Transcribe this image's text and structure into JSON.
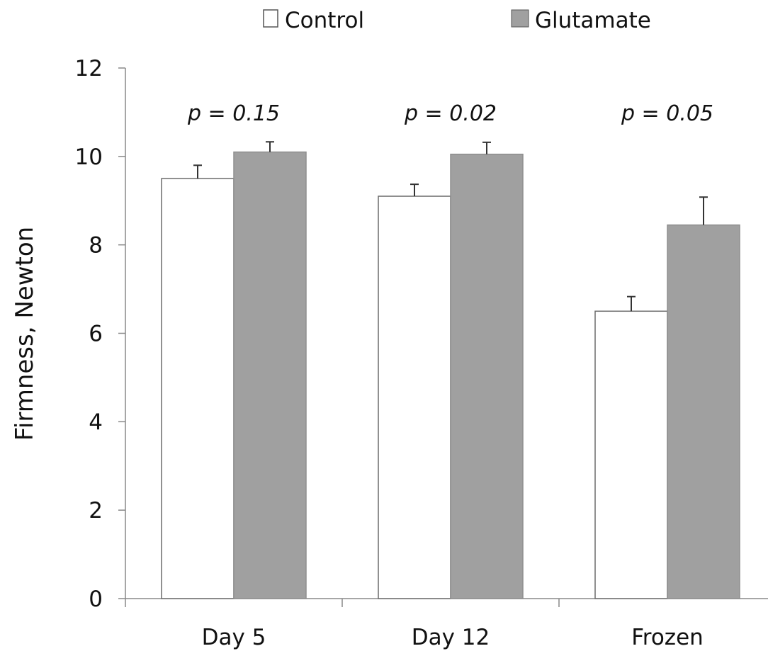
{
  "chart_data": {
    "type": "bar",
    "categories": [
      "Day 5",
      "Day 12",
      "Frozen"
    ],
    "series": [
      {
        "name": "Control",
        "values": [
          9.5,
          9.1,
          6.5
        ],
        "errors": [
          0.3,
          0.27,
          0.33
        ],
        "color": "#ffffff"
      },
      {
        "name": "Glutamate",
        "values": [
          10.1,
          10.05,
          8.45
        ],
        "errors": [
          0.23,
          0.27,
          0.63
        ],
        "color": "#a0a0a0"
      }
    ],
    "annotations": [
      "p = 0.15",
      "p = 0.02",
      "p = 0.05"
    ],
    "ylabel": "Firmness, Newton",
    "xlabel": "",
    "ylim": [
      0,
      12
    ],
    "yticks": [
      0,
      2,
      4,
      6,
      8,
      10,
      12
    ],
    "grid": false,
    "legend_position": "top"
  }
}
